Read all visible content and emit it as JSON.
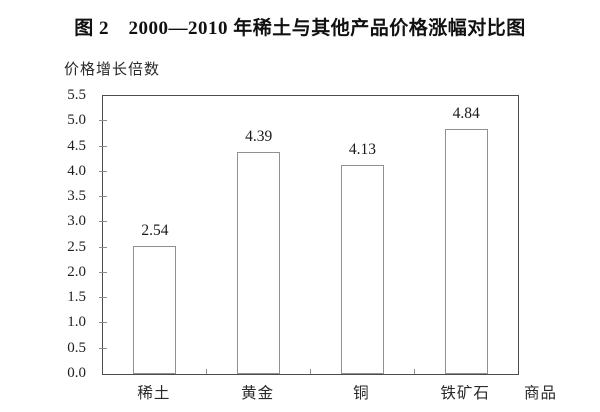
{
  "chart_data": {
    "type": "bar",
    "title": "图 2　2000—2010 年稀土与其他产品价格涨幅对比图",
    "ylabel": "价格增长倍数",
    "xlabel": "商品",
    "categories": [
      "稀土",
      "黄金",
      "铜",
      "铁矿石"
    ],
    "values": [
      2.54,
      4.39,
      4.13,
      4.84
    ],
    "value_labels": [
      "2.54",
      "4.39",
      "4.13",
      "4.84"
    ],
    "y_ticks": [
      "0.0",
      "0.5",
      "1.0",
      "1.5",
      "2.0",
      "2.5",
      "3.0",
      "3.5",
      "4.0",
      "4.5",
      "5.0",
      "5.5"
    ],
    "ylim": [
      0,
      5.5
    ],
    "grid": false,
    "legend": "none",
    "bar_fill": "#ffffff",
    "bar_border": "#909090",
    "axis_color": "#4d4d4d",
    "tick_color": "#8c8c8c",
    "text_color": "#1f1f1f"
  }
}
